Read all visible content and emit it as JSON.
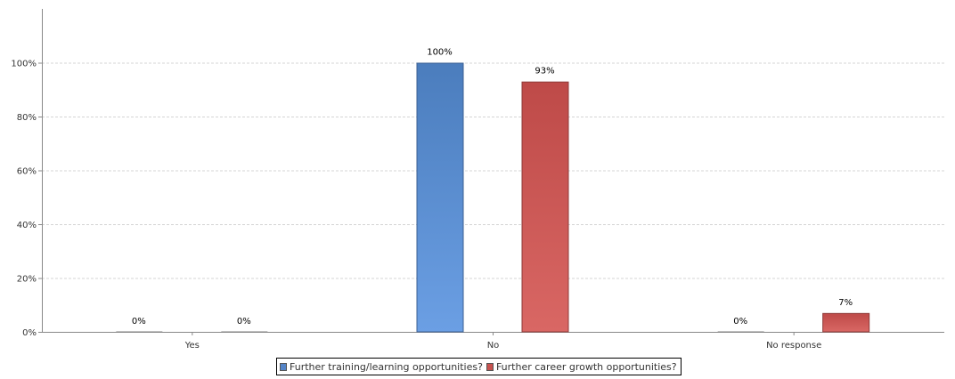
{
  "chart_data": {
    "type": "bar",
    "categories": [
      "Yes",
      "No",
      "No response"
    ],
    "series": [
      {
        "name": "Further training/learning opportunities?",
        "values": [
          0,
          100,
          0
        ],
        "labels": [
          "0%",
          "100%",
          "0%"
        ],
        "color": "#5585c8"
      },
      {
        "name": "Further career growth opportunities?",
        "values": [
          0,
          93,
          7
        ],
        "labels": [
          "0%",
          "93%",
          "7%"
        ],
        "color": "#c8524f"
      }
    ],
    "yticks": [
      "0%",
      "20%",
      "40%",
      "60%",
      "80%",
      "100%"
    ],
    "ylim": [
      0,
      120
    ],
    "grid": true,
    "legend_position": "bottom"
  }
}
